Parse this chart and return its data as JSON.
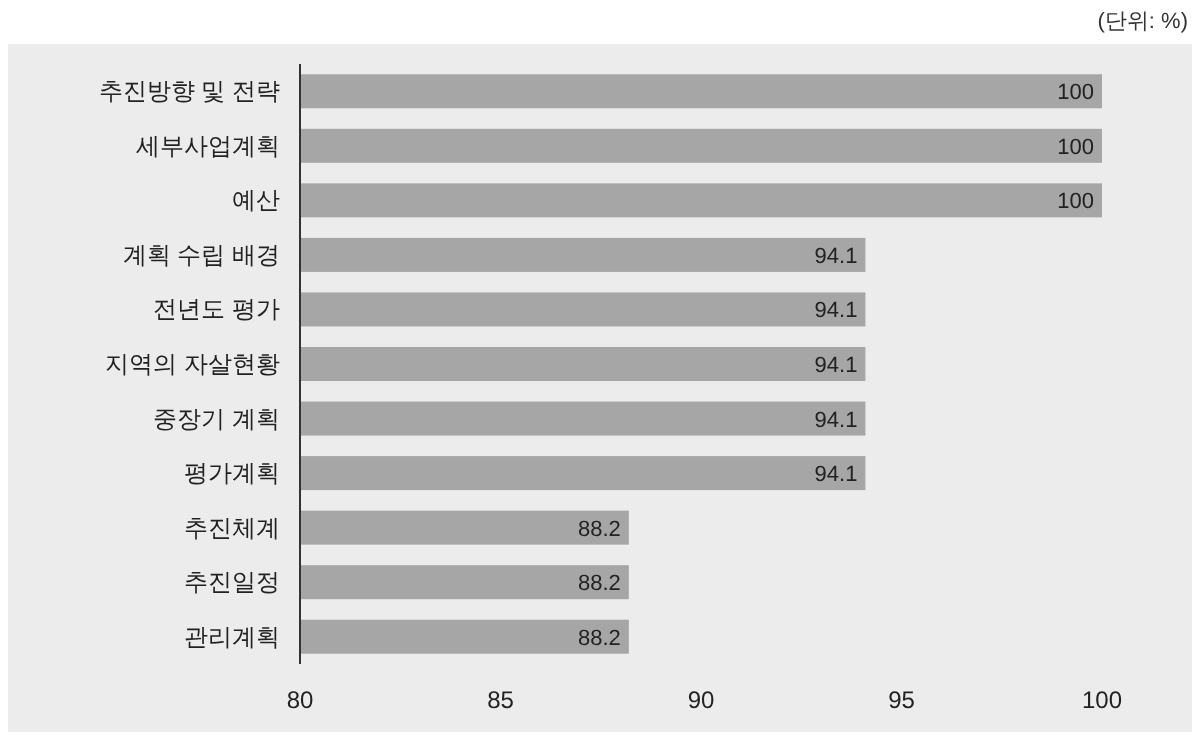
{
  "chart_data": {
    "type": "bar",
    "orientation": "horizontal",
    "categories": [
      "추진방향 및 전략",
      "세부사업계획",
      "예산",
      "계획 수립 배경",
      "전년도 평가",
      "지역의 자살현황",
      "중장기 계획",
      "평가계획",
      "추진체계",
      "추진일정",
      "관리계획"
    ],
    "values": [
      100,
      100,
      100,
      94.1,
      94.1,
      94.1,
      94.1,
      94.1,
      88.2,
      88.2,
      88.2
    ],
    "color": "#a6a6a6",
    "xlim": [
      80,
      100
    ],
    "xticks": [
      80,
      85,
      90,
      95,
      100
    ],
    "data_labels": true,
    "grid": false,
    "annotations": [
      "(단위: %)"
    ]
  }
}
